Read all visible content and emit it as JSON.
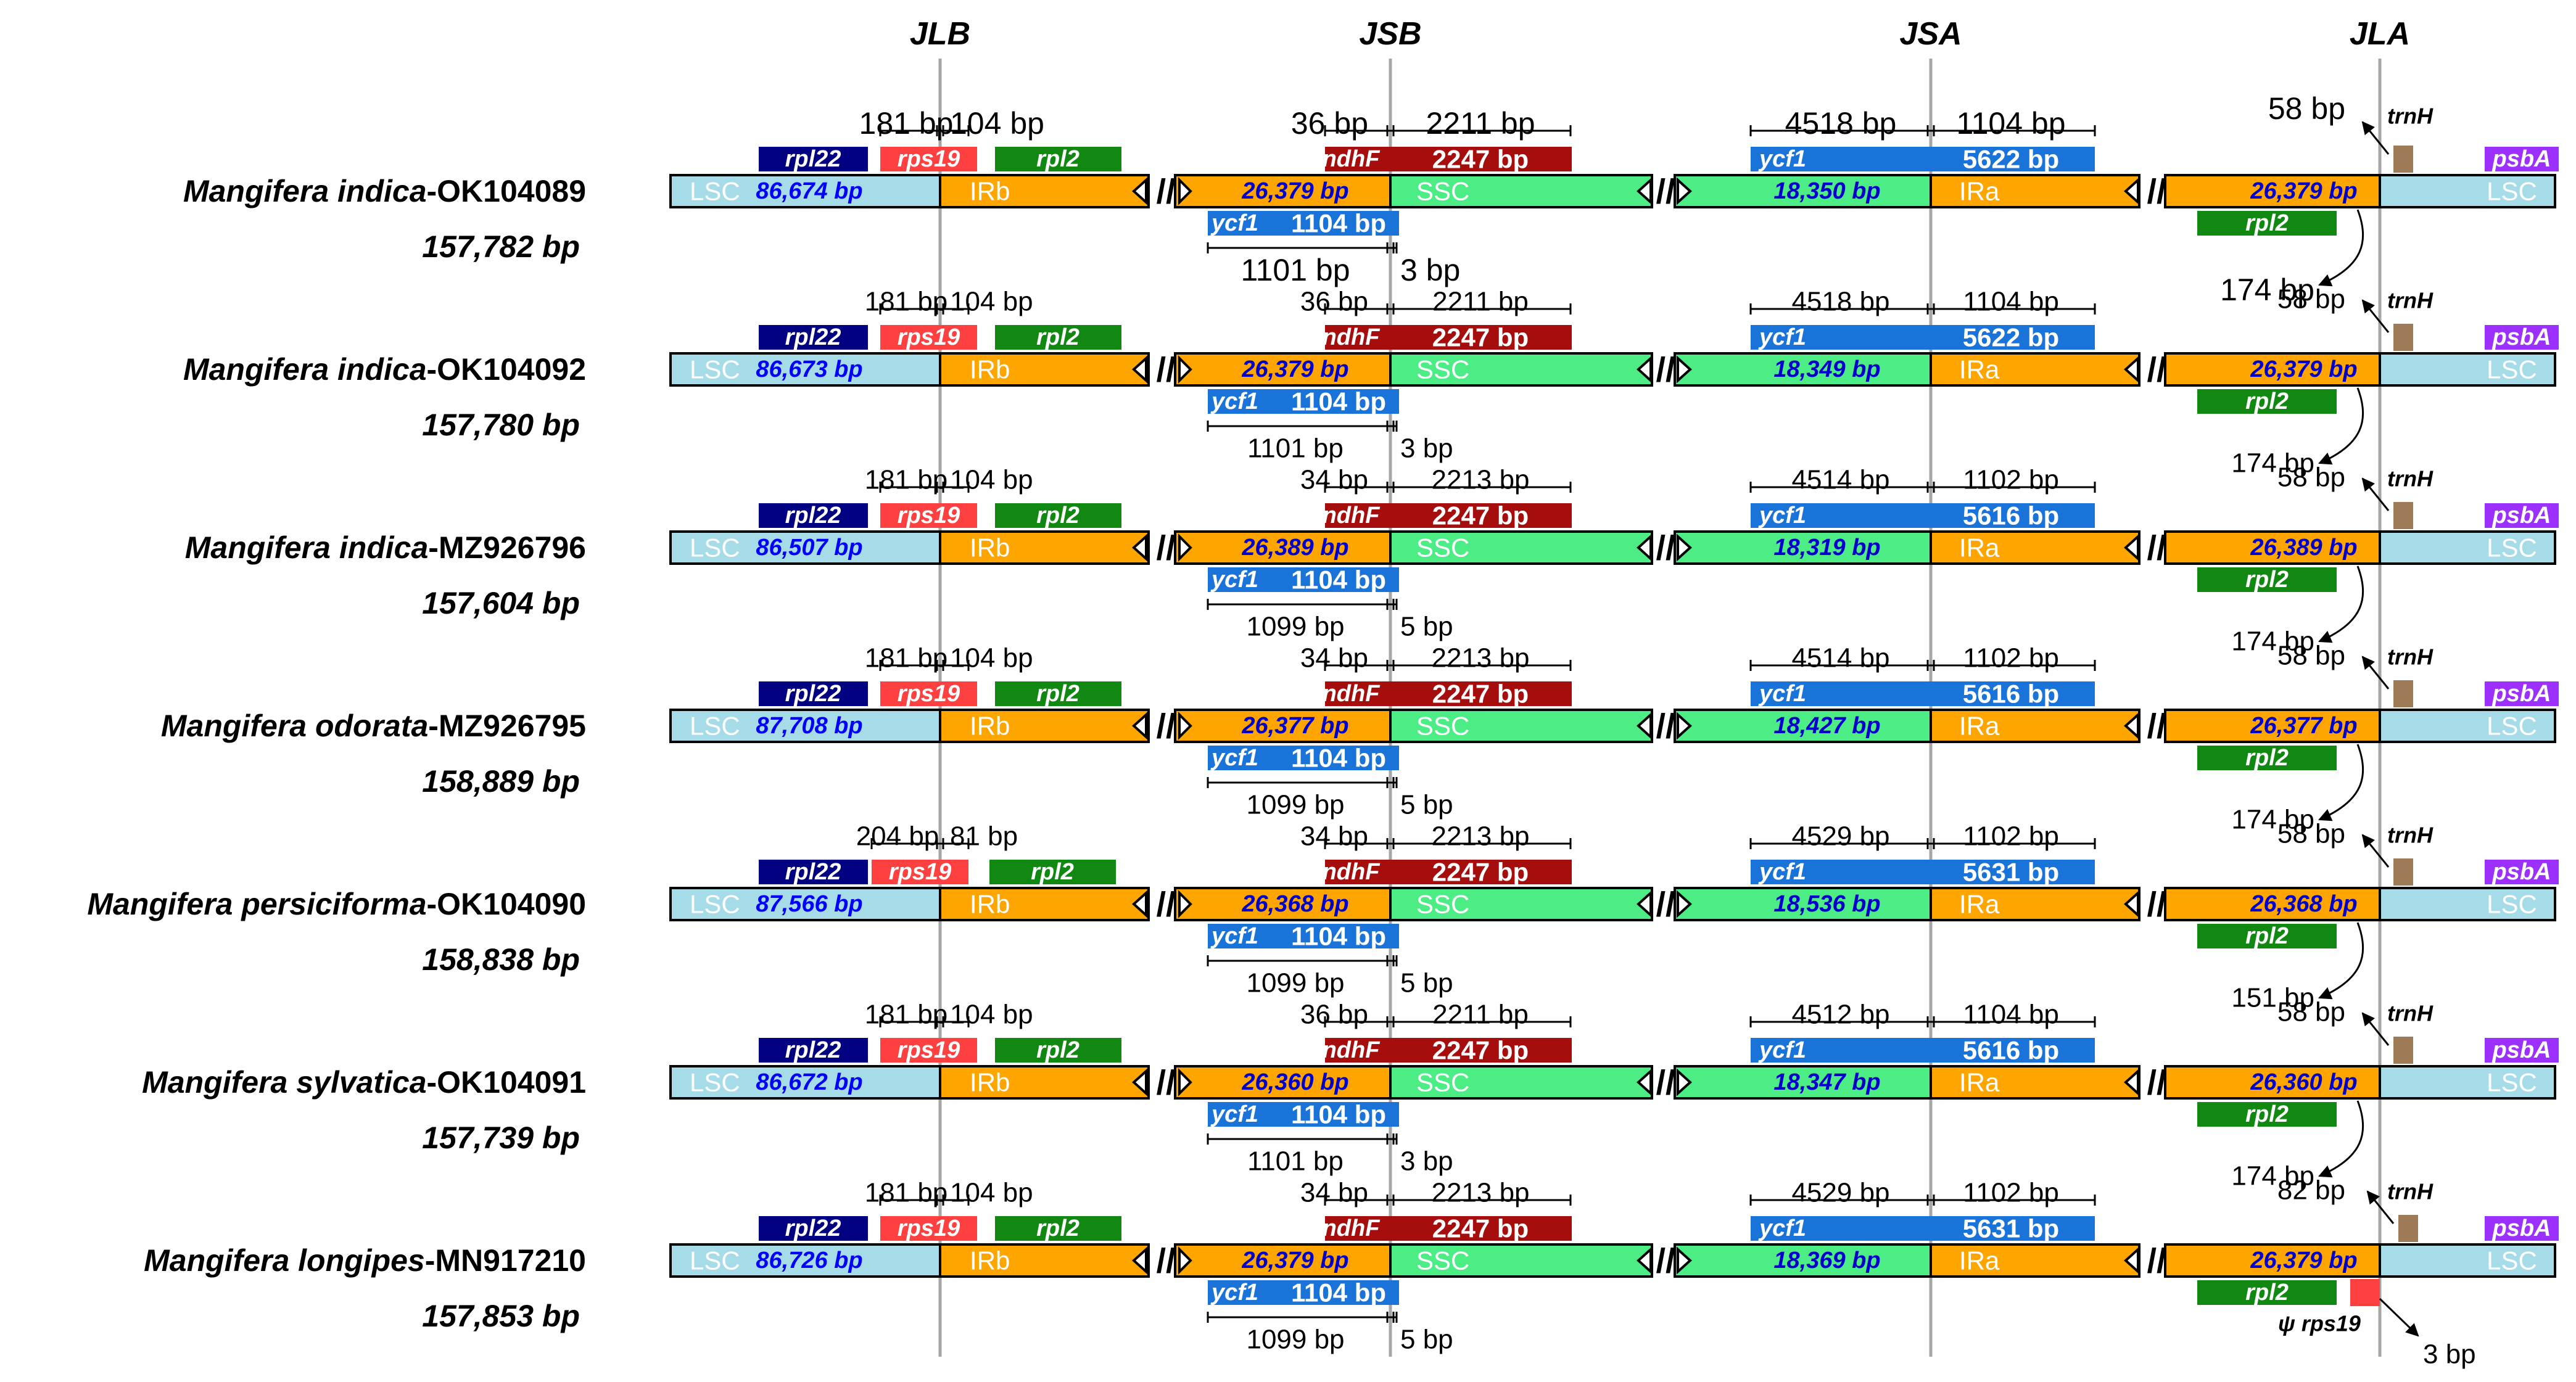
{
  "junctions": [
    "JLB",
    "JSB",
    "JSA",
    "JLA"
  ],
  "labels": {
    "LSC": "LSC",
    "IRb": "IRb",
    "SSC": "SSC",
    "IRa": "IRa",
    "rpl22": "rpl22",
    "rps19": "rps19",
    "rpl2": "rpl2",
    "ndhF": "ndhF",
    "ycf1": "ycf1",
    "trnH": "trnH",
    "psbA": "psbA",
    "psi_rps19": "ψ rps19"
  },
  "colors": {
    "LSC": "#a6dbe8",
    "IR": "#ffa500",
    "SSC": "#4ded85",
    "rpl22": "#000080",
    "rps19": "#ff4040",
    "rpl2": "#118811",
    "ndhF": "#a60d0d",
    "ycf1": "#1a73d9",
    "trnH": "#9c7b56",
    "psbA": "#9b30ff",
    "lsc_text": "#0000ff",
    "ir_text": "#0000cc",
    "jline": "#a6a6a6"
  },
  "rows": [
    {
      "species": "Mangifera indica",
      "accession": "-OK104089",
      "total": "157,782 bp",
      "lsc": "86,674 bp",
      "ir": "26,379 bp",
      "ssc": "18,350 bp",
      "rps19_left": "181 bp",
      "rps19_right": "104 bp",
      "ndhF_left": "36 bp",
      "ndhF_right": "2211 bp",
      "ndhF_len": "2247 bp",
      "ycf1b_len": "1104 bp",
      "ycf1b_left": "1101 bp",
      "ycf1b_right": "3 bp",
      "ycf1a_left": "4518 bp",
      "ycf1a_right": "1104 bp",
      "ycf1a_len": "5622 bp",
      "trnH_dist": "58 bp",
      "rpl2_dist": "174 bp",
      "big": true
    },
    {
      "species": "Mangifera indica",
      "accession": "-OK104092",
      "total": "157,780 bp",
      "lsc": "86,673 bp",
      "ir": "26,379 bp",
      "ssc": "18,349 bp",
      "rps19_left": "181 bp",
      "rps19_right": "104 bp",
      "ndhF_left": "36 bp",
      "ndhF_right": "2211 bp",
      "ndhF_len": "2247 bp",
      "ycf1b_len": "1104 bp",
      "ycf1b_left": "1101 bp",
      "ycf1b_right": "3 bp",
      "ycf1a_left": "4518 bp",
      "ycf1a_right": "1104 bp",
      "ycf1a_len": "5622 bp",
      "trnH_dist": "58 bp",
      "rpl2_dist": "174 bp"
    },
    {
      "species": "Mangifera indica",
      "accession": "-MZ926796",
      "total": "157,604 bp",
      "lsc": "86,507 bp",
      "ir": "26,389 bp",
      "ssc": "18,319 bp",
      "rps19_left": "181 bp",
      "rps19_right": "104 bp",
      "ndhF_left": "34 bp",
      "ndhF_right": "2213 bp",
      "ndhF_len": "2247 bp",
      "ycf1b_len": "1104 bp",
      "ycf1b_left": "1099 bp",
      "ycf1b_right": "5 bp",
      "ycf1a_left": "4514 bp",
      "ycf1a_right": "1102 bp",
      "ycf1a_len": "5616 bp",
      "trnH_dist": "58 bp",
      "rpl2_dist": "174 bp"
    },
    {
      "species": "Mangifera odorata",
      "accession": "-MZ926795",
      "total": "158,889 bp",
      "lsc": "87,708 bp",
      "ir": "26,377 bp",
      "ssc": "18,427 bp",
      "rps19_left": "181 bp",
      "rps19_right": "104 bp",
      "ndhF_left": "34 bp",
      "ndhF_right": "2213 bp",
      "ndhF_len": "2247 bp",
      "ycf1b_len": "1104 bp",
      "ycf1b_left": "1099 bp",
      "ycf1b_right": "5 bp",
      "ycf1a_left": "4514 bp",
      "ycf1a_right": "1102 bp",
      "ycf1a_len": "5616 bp",
      "trnH_dist": "58 bp",
      "rpl2_dist": "174 bp"
    },
    {
      "species": "Mangifera persiciforma",
      "accession": "-OK104090",
      "total": "158,838 bp",
      "lsc": "87,566 bp",
      "ir": "26,368 bp",
      "ssc": "18,536 bp",
      "rps19_left": "204 bp",
      "rps19_right": "81 bp",
      "ndhF_left": "34 bp",
      "ndhF_right": "2213 bp",
      "ndhF_len": "2247 bp",
      "ycf1b_len": "1104 bp",
      "ycf1b_left": "1099 bp",
      "ycf1b_right": "5 bp",
      "ycf1a_left": "4529 bp",
      "ycf1a_right": "1102 bp",
      "ycf1a_len": "5631 bp",
      "trnH_dist": "58 bp",
      "rpl2_dist": "151 bp",
      "rps19_shift": true
    },
    {
      "species": "Mangifera sylvatica",
      "accession": "-OK104091",
      "total": "157,739 bp",
      "lsc": "86,672 bp",
      "ir": "26,360 bp",
      "ssc": "18,347 bp",
      "rps19_left": "181 bp",
      "rps19_right": "104 bp",
      "ndhF_left": "36 bp",
      "ndhF_right": "2211 bp",
      "ndhF_len": "2247 bp",
      "ycf1b_len": "1104 bp",
      "ycf1b_left": "1101 bp",
      "ycf1b_right": "3 bp",
      "ycf1a_left": "4512 bp",
      "ycf1a_right": "1104 bp",
      "ycf1a_len": "5616 bp",
      "trnH_dist": "58 bp",
      "rpl2_dist": "174 bp"
    },
    {
      "species": "Mangifera longipes",
      "accession": "-MN917210",
      "total": "157,853 bp",
      "lsc": "86,726 bp",
      "ir": "26,379 bp",
      "ssc": "18,369 bp",
      "rps19_left": "181 bp",
      "rps19_right": "104 bp",
      "ndhF_left": "34 bp",
      "ndhF_right": "2213 bp",
      "ndhF_len": "2247 bp",
      "ycf1b_len": "1104 bp",
      "ycf1b_left": "1099 bp",
      "ycf1b_right": "5 bp",
      "ycf1a_left": "4529 bp",
      "ycf1a_right": "1102 bp",
      "ycf1a_len": "5631 bp",
      "trnH_dist": "82 bp",
      "psi_dist": "3 bp",
      "has_psi": true
    }
  ]
}
